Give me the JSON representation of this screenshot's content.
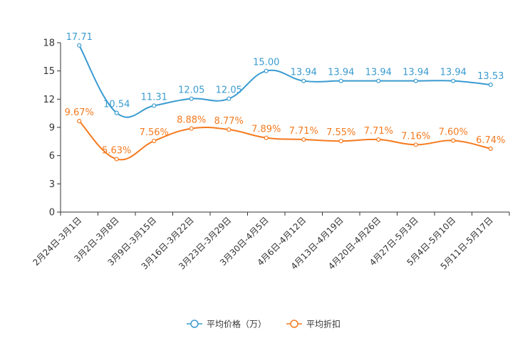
{
  "chart_data": {
    "type": "line",
    "title": "",
    "xlabel": "",
    "ylabel": "",
    "ylim": [
      0,
      18
    ],
    "yticks": [
      0,
      3,
      6,
      9,
      12,
      15,
      18
    ],
    "grid": false,
    "legend_position": "bottom-center",
    "categories": [
      "2月24日-3月1日",
      "3月2日-3月8日",
      "3月9日-3月15日",
      "3月16日-3月22日",
      "3月23日-3月29日",
      "3月30日-4月5日",
      "4月6日-4月12日",
      "4月13日-4月19日",
      "4月20日-4月26日",
      "4月27日-5月3日",
      "5月4日-5月10日",
      "5月11日-5月17日"
    ],
    "series": [
      {
        "name": "平均价格（万）",
        "color": "#3a9bd0",
        "values": [
          17.71,
          10.54,
          11.31,
          12.05,
          12.05,
          15.0,
          13.94,
          13.94,
          13.94,
          13.94,
          13.94,
          13.53
        ],
        "labels": [
          "17.71",
          "10.54",
          "11.31",
          "12.05",
          "12.05",
          "15.00",
          "13.94",
          "13.94",
          "13.94",
          "13.94",
          "13.94",
          "13.53"
        ]
      },
      {
        "name": "平均折扣",
        "color": "#f47a1f",
        "values": [
          9.67,
          5.63,
          7.56,
          8.88,
          8.77,
          7.89,
          7.71,
          7.55,
          7.71,
          7.16,
          7.6,
          6.74
        ],
        "labels": [
          "9.67%",
          "5.63%",
          "7.56%",
          "8.88%",
          "8.77%",
          "7.89%",
          "7.71%",
          "7.55%",
          "7.71%",
          "7.16%",
          "7.60%",
          "6.74%"
        ]
      }
    ]
  }
}
